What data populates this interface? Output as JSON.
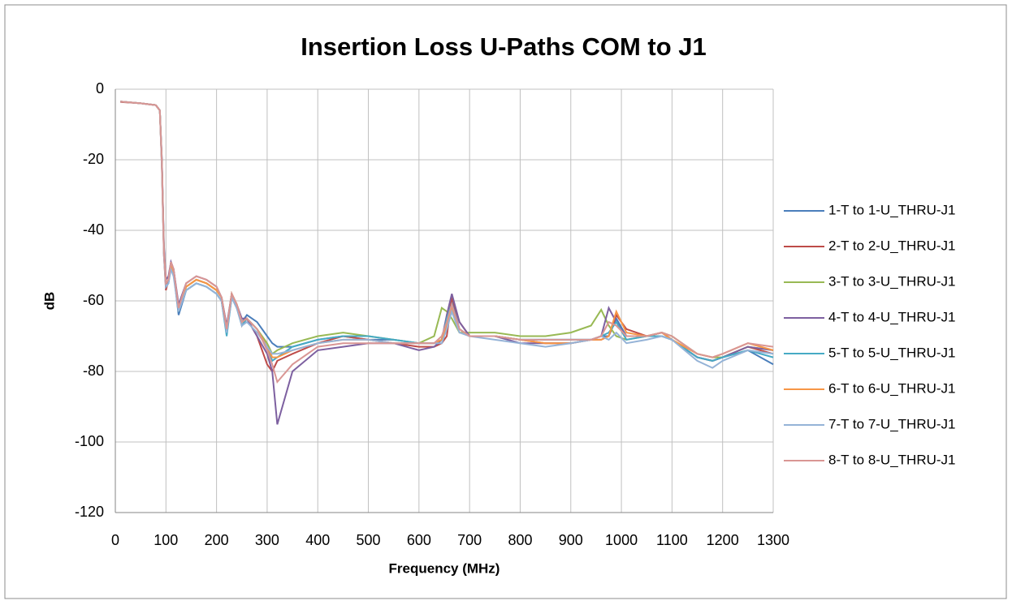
{
  "chart_data": {
    "type": "line",
    "title": "Insertion Loss U-Paths COM to J1",
    "x_label": "Frequency (MHz)",
    "y_label": "dB",
    "xlim": [
      0,
      1300
    ],
    "xticks": [
      0,
      100,
      200,
      300,
      400,
      500,
      600,
      700,
      800,
      900,
      1000,
      1100,
      1200,
      1300
    ],
    "ylim": [
      -120,
      0
    ],
    "yticks": [
      0,
      -20,
      -40,
      -60,
      -80,
      -100,
      -120
    ],
    "grid": true,
    "legend": "right",
    "x": [
      10,
      50,
      80,
      88,
      92,
      96,
      100,
      105,
      110,
      115,
      125,
      140,
      160,
      180,
      200,
      210,
      220,
      230,
      240,
      250,
      260,
      280,
      300,
      310,
      320,
      350,
      400,
      450,
      500,
      550,
      600,
      630,
      645,
      655,
      665,
      680,
      700,
      750,
      800,
      850,
      900,
      940,
      960,
      975,
      990,
      1010,
      1050,
      1080,
      1100,
      1150,
      1180,
      1200,
      1250,
      1300
    ],
    "series": [
      {
        "name": "1-T to 1-U_THRU-J1",
        "color": "#4a7ebb",
        "values": [
          -3.5,
          -4,
          -4.5,
          -6,
          -20,
          -45,
          -56,
          -55,
          -50,
          -52,
          -64,
          -57,
          -55,
          -56,
          -58,
          -60,
          -69,
          -59,
          -62,
          -66,
          -64,
          -66,
          -70,
          -72,
          -73,
          -73,
          -71,
          -70,
          -71,
          -71,
          -72,
          -72,
          -71,
          -66,
          -60,
          -68,
          -70,
          -70,
          -71,
          -71,
          -71,
          -71,
          -70,
          -70,
          -65,
          -70,
          -70,
          -70,
          -71,
          -76,
          -77,
          -76,
          -74,
          -78
        ]
      },
      {
        "name": "2-T to 2-U_THRU-J1",
        "color": "#be4b48",
        "values": [
          -3.6,
          -4,
          -4.5,
          -6,
          -22,
          -47,
          -57,
          -54,
          -49,
          -51,
          -62,
          -56,
          -54,
          -55,
          -57,
          -59,
          -68,
          -58,
          -61,
          -67,
          -65,
          -70,
          -78,
          -80,
          -77,
          -75,
          -72,
          -70,
          -71,
          -72,
          -73,
          -73,
          -72,
          -70,
          -59,
          -66,
          -70,
          -70,
          -71,
          -72,
          -72,
          -71,
          -71,
          -70,
          -64,
          -68,
          -70,
          -69,
          -71,
          -76,
          -77,
          -76,
          -73,
          -75
        ]
      },
      {
        "name": "3-T to 3-U_THRU-J1",
        "color": "#98b954",
        "values": [
          -3.5,
          -4,
          -4.5,
          -6,
          -21,
          -46,
          -55,
          -54,
          -50,
          -52,
          -63,
          -56,
          -54,
          -55,
          -57,
          -59,
          -68,
          -58,
          -61,
          -66,
          -65,
          -68,
          -72,
          -75,
          -74,
          -72,
          -70,
          -69,
          -70,
          -71,
          -72,
          -70,
          -62,
          -63,
          -65,
          -69,
          -69,
          -69,
          -70,
          -70,
          -69,
          -67,
          -62.5,
          -67,
          -70,
          -71,
          -70,
          -69,
          -70,
          -75,
          -76,
          -76,
          -73,
          -74
        ]
      },
      {
        "name": "4-T to 4-U_THRU-J1",
        "color": "#7d60a0",
        "values": [
          -3.5,
          -4,
          -4.5,
          -6,
          -20,
          -44,
          -54,
          -53,
          -49,
          -51,
          -61,
          -55,
          -53,
          -54,
          -56,
          -59,
          -67,
          -58,
          -61,
          -65,
          -65,
          -70,
          -75,
          -80,
          -95,
          -80,
          -74,
          -73,
          -72,
          -72,
          -74,
          -73,
          -71,
          -64,
          -58,
          -66,
          -70,
          -70,
          -72,
          -72,
          -72,
          -71,
          -70,
          -62,
          -66,
          -70,
          -70,
          -69,
          -71,
          -76,
          -77,
          -76,
          -73,
          -74
        ]
      },
      {
        "name": "5-T to 5-U_THRU-J1",
        "color": "#46aac5",
        "values": [
          -3.5,
          -4,
          -4.5,
          -6,
          -21,
          -46,
          -56,
          -55,
          -50,
          -52,
          -63,
          -57,
          -55,
          -56,
          -58,
          -60,
          -70,
          -59,
          -62,
          -67,
          -65,
          -68,
          -73,
          -77,
          -76,
          -73,
          -71,
          -70,
          -70,
          -71,
          -72,
          -72,
          -71,
          -65,
          -61,
          -68,
          -70,
          -70,
          -71,
          -71,
          -71,
          -71,
          -70,
          -69,
          -66,
          -71,
          -70,
          -70,
          -71,
          -76,
          -77,
          -76,
          -74,
          -76
        ]
      },
      {
        "name": "6-T to 6-U_THRU-J1",
        "color": "#f79646",
        "values": [
          -3.5,
          -4,
          -4.5,
          -6,
          -21,
          -46,
          -55,
          -54,
          -50,
          -52,
          -62,
          -56,
          -54,
          -55,
          -57,
          -59,
          -68,
          -58,
          -61,
          -66,
          -65,
          -68,
          -73,
          -76,
          -76,
          -74,
          -72,
          -71,
          -71,
          -72,
          -72,
          -72,
          -71,
          -67,
          -62,
          -68,
          -70,
          -70,
          -71,
          -72,
          -72,
          -71,
          -71,
          -70,
          -63,
          -69,
          -70,
          -69,
          -71,
          -75,
          -76,
          -75,
          -72,
          -74
        ]
      },
      {
        "name": "7-T to 7-U_THRU-J1",
        "color": "#95b3d7",
        "values": [
          -3.5,
          -4,
          -4.5,
          -6,
          -22,
          -47,
          -56,
          -55,
          -51,
          -53,
          -63,
          -57,
          -55,
          -56,
          -58,
          -60,
          -69,
          -59,
          -62,
          -67,
          -66,
          -69,
          -73,
          -75,
          -75,
          -74,
          -72,
          -71,
          -71,
          -72,
          -72,
          -72,
          -72,
          -68,
          -63,
          -69,
          -70,
          -71,
          -72,
          -73,
          -72,
          -71,
          -70,
          -71,
          -69,
          -72,
          -71,
          -70,
          -71,
          -77,
          -79,
          -77,
          -74,
          -75
        ]
      },
      {
        "name": "8-T to 8-U_THRU-J1",
        "color": "#d99694",
        "values": [
          -3.5,
          -4,
          -4.5,
          -6,
          -21,
          -46,
          -55,
          -54,
          -49,
          -51,
          -62,
          -55,
          -53,
          -54,
          -56,
          -59,
          -68,
          -58,
          -61,
          -66,
          -65,
          -68,
          -74,
          -78,
          -83,
          -78,
          -73,
          -72,
          -72,
          -72,
          -72,
          -72,
          -70,
          -66,
          -61,
          -68,
          -70,
          -70,
          -71,
          -71,
          -71,
          -71,
          -70,
          -66,
          -67,
          -70,
          -70,
          -69,
          -70,
          -75,
          -76,
          -75,
          -72,
          -73
        ]
      }
    ]
  }
}
